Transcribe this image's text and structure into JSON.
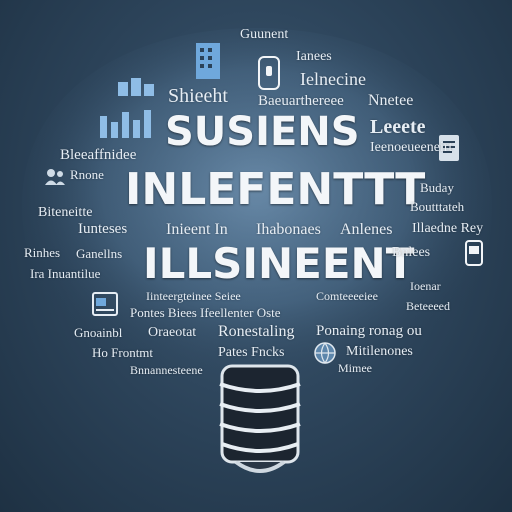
{
  "headings": {
    "line1": "SUSIENS",
    "line2": "INLEFENTTT",
    "line3": "ILLSINEENT"
  },
  "words": {
    "w_top1": "Guunent",
    "w_top2": "Ianees",
    "w_top3": "Ielnecine",
    "w_left1": "Shieeht",
    "w_mid1": "Baeuarthereee",
    "w_right1": "Nnetee",
    "w_right2": "Leeete",
    "w_left2": "Bleeaffnidee",
    "w_right3": "Ieenoeueeneirt",
    "w_left3": "Rnone",
    "w_right4": "Buday",
    "w_left4": "Biteneitte",
    "w_right5": "Boutttateh",
    "w_left5": "Iunteses",
    "w_mid2": "Inieent In",
    "w_mid3": "Ihabonaes",
    "w_mid4": "Anlenes",
    "w_right6": "Illaedne Rey",
    "w_left6": "Rinhes",
    "w_left7": "Ganellns",
    "w_right7": "Bnlees",
    "w_left8": "Ira Inuantilue",
    "w_right8": "Ioenar",
    "w_mid5": "Iinteergteinee Seiee",
    "w_mid6": "Comteeeeiee",
    "w_mid7": "Pontes Biees Ifeellenter Oste",
    "w_right9": "Beteeeed",
    "w_left9": "Gnoainbl",
    "w_mid8": "Oraeotat",
    "w_mid9": "Ronestaling",
    "w_mid10": "Ponaing ronag ou",
    "w_left10": "Ho Frontmt",
    "w_mid11": "Pates Fncks",
    "w_right10": "Mitilenones",
    "w_left11": "Bnnannesteene",
    "w_right11": "Mimee"
  },
  "colors": {
    "background": "#2b4258",
    "text": "#e6edf4",
    "accent_blue": "#6fa8dc",
    "bulb_base": "#1c2530"
  },
  "icons": [
    "bar-chart-icon",
    "building-icon",
    "phone-icon",
    "document-icon",
    "window-icon",
    "globe-icon",
    "card-icon",
    "people-icon",
    "screw-base-icon"
  ]
}
